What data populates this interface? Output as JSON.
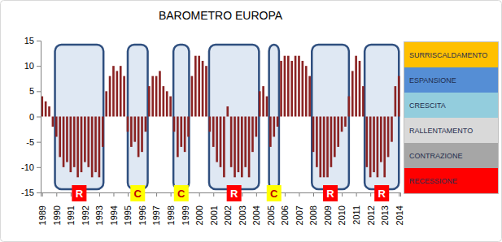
{
  "chart_data": {
    "type": "bar",
    "title": "BAROMETRO EUROPA",
    "x": [
      1989,
      1989.25,
      1989.5,
      1989.75,
      1990,
      1990.25,
      1990.5,
      1990.75,
      1991,
      1991.25,
      1991.5,
      1991.75,
      1992,
      1992.25,
      1992.5,
      1992.75,
      1993,
      1993.25,
      1993.5,
      1993.75,
      1994,
      1994.25,
      1994.5,
      1994.75,
      1995,
      1995.25,
      1995.5,
      1995.75,
      1996,
      1996.25,
      1996.5,
      1996.75,
      1997,
      1997.25,
      1997.5,
      1997.75,
      1998,
      1998.25,
      1998.5,
      1998.75,
      1999,
      1999.25,
      1999.5,
      1999.75,
      2000,
      2000.25,
      2000.5,
      2000.75,
      2001,
      2001.25,
      2001.5,
      2001.75,
      2002,
      2002.25,
      2002.5,
      2002.75,
      2003,
      2003.25,
      2003.5,
      2003.75,
      2004,
      2004.25,
      2004.5,
      2004.75,
      2005,
      2005.25,
      2005.5,
      2005.75,
      2006,
      2006.25,
      2006.5,
      2006.75,
      2007,
      2007.25,
      2007.5,
      2007.75,
      2008,
      2008.25,
      2008.5,
      2008.75,
      2009,
      2009.25,
      2009.5,
      2009.75,
      2010,
      2010.25,
      2010.5,
      2010.75,
      2011,
      2011.25,
      2011.5,
      2011.75,
      2012,
      2012.25,
      2012.5,
      2012.75,
      2013,
      2013.25,
      2013.5,
      2013.75,
      2014
    ],
    "values": [
      4,
      3,
      2,
      -2,
      -4,
      -8,
      -10,
      -9,
      -11,
      -10,
      -12,
      -11,
      -9,
      -10,
      -12,
      -11,
      -12,
      -6,
      5,
      8,
      10,
      9,
      10,
      8,
      -3,
      -6,
      -5,
      -8,
      -7,
      -3,
      6,
      8,
      8,
      9,
      6,
      5,
      4,
      -3,
      -8,
      -6,
      -7,
      -4,
      8,
      12,
      12,
      11,
      10,
      -3,
      -6,
      -9,
      -10,
      -12,
      2,
      -10,
      -12,
      -11,
      -12,
      -10,
      -12,
      -7,
      -4,
      5,
      6,
      4,
      -6,
      -4,
      -2,
      11,
      12,
      12,
      11,
      12,
      12,
      11,
      10,
      8,
      -7,
      -10,
      -12,
      -12,
      -12,
      -10,
      -8,
      -6,
      -3,
      -2,
      4,
      9,
      12,
      11,
      6,
      -10,
      -12,
      -11,
      -12,
      -9,
      -12,
      -8,
      -5,
      6,
      8
    ],
    "color": "#8b2323",
    "xlim": [
      1988.9,
      2014.1
    ],
    "xticks": [
      1989,
      1990,
      1991,
      1992,
      1993,
      1994,
      1995,
      1996,
      1997,
      1998,
      1999,
      2000,
      2001,
      2002,
      2003,
      2004,
      2005,
      2006,
      2007,
      2008,
      2009,
      2010,
      2011,
      2012,
      2013,
      2014
    ],
    "ylim": [
      -15,
      15
    ],
    "yticks": [
      -15,
      -10,
      -5,
      0,
      5,
      10,
      15
    ],
    "grid": false,
    "legend": "right",
    "periods": [
      {
        "label": "R",
        "start": 1989.9,
        "end": 1993.3,
        "color": "#ff0000"
      },
      {
        "label": "C",
        "start": 1995.0,
        "end": 1996.4,
        "color": "#ffff00"
      },
      {
        "label": "C",
        "start": 1998.2,
        "end": 1999.3,
        "color": "#ffff00"
      },
      {
        "label": "R",
        "start": 2000.7,
        "end": 2004.2,
        "color": "#ff0000"
      },
      {
        "label": "C",
        "start": 2004.9,
        "end": 2005.6,
        "color": "#ffff00"
      },
      {
        "label": "R",
        "start": 2007.9,
        "end": 2010.5,
        "color": "#ff0000"
      },
      {
        "label": "R",
        "start": 2011.6,
        "end": 2014.0,
        "color": "#ff0000"
      }
    ],
    "regimes": [
      {
        "name": "SURRISCALDAMENTO",
        "color": "#ffc000"
      },
      {
        "name": "ESPANSIONE",
        "color": "#558ed5"
      },
      {
        "name": "CRESCITA",
        "color": "#93cddd"
      },
      {
        "name": "RALLENTAMENTO",
        "color": "#d9d9d9"
      },
      {
        "name": "CONTRAZIONE",
        "color": "#a6a6a6"
      },
      {
        "name": "RECESSIONE",
        "color": "#ff0000"
      }
    ]
  }
}
